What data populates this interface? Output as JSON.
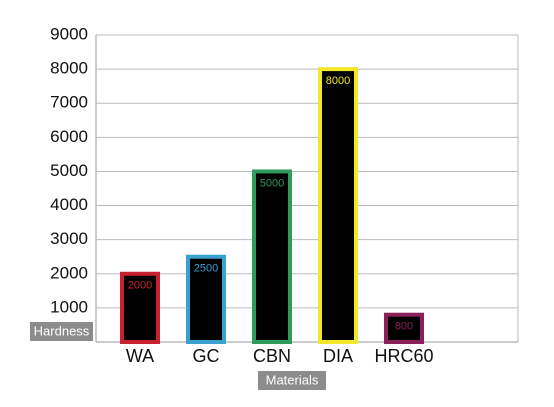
{
  "chart_data": {
    "type": "bar",
    "x_label": "Materials",
    "y_label": "Hardness",
    "categories": [
      "WA",
      "GC",
      "CBN",
      "DIA",
      "HRC60"
    ],
    "values": [
      2000,
      2500,
      5000,
      8000,
      800
    ],
    "colors": [
      "#c8202f",
      "#3aa0d0",
      "#2e9a5c",
      "#f0e829",
      "#8b1f5a"
    ],
    "bar_fill": "#000000",
    "ylim": [
      0,
      9000
    ],
    "yticks": [
      1000,
      2000,
      3000,
      4000,
      5000,
      6000,
      7000,
      8000,
      9000
    ],
    "grid": true
  }
}
